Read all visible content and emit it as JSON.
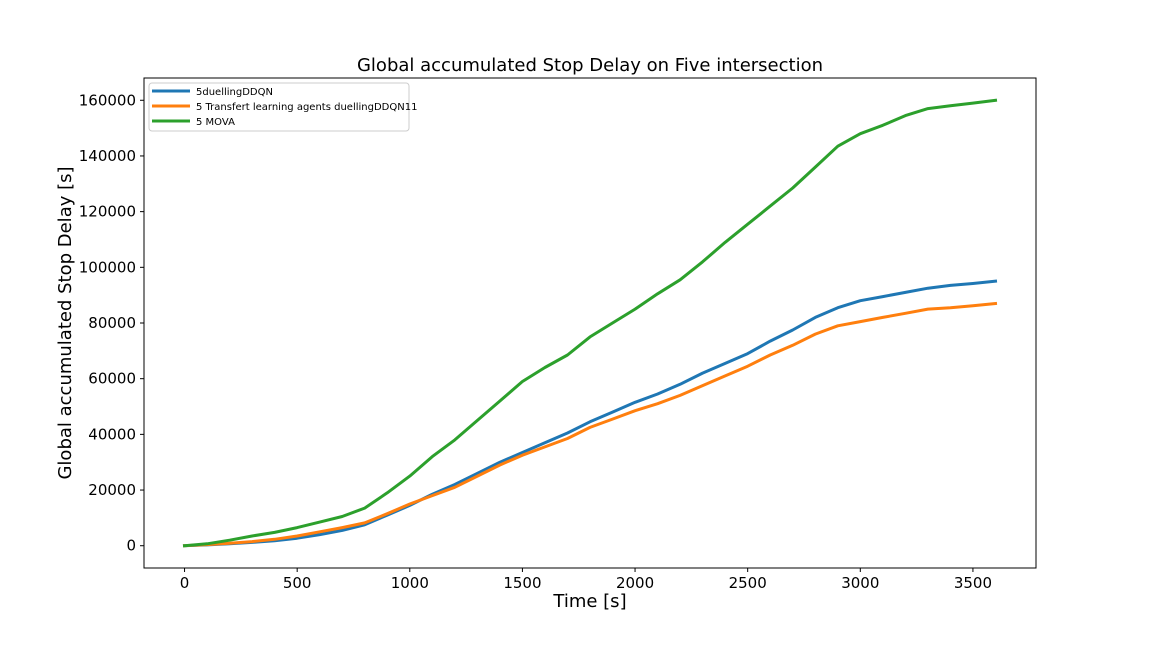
{
  "chart_data": {
    "type": "line",
    "title": "Global accumulated Stop Delay on Five intersection",
    "xlabel": "Time [s]",
    "ylabel": "Global accumulated Stop Delay [s]",
    "xlim": [
      -180,
      3780
    ],
    "ylim": [
      -8000,
      168000
    ],
    "xticks": [
      0,
      500,
      1000,
      1500,
      2000,
      2500,
      3000,
      3500
    ],
    "yticks": [
      0,
      20000,
      40000,
      60000,
      80000,
      100000,
      120000,
      140000,
      160000
    ],
    "grid": false,
    "legend_position": "upper-left",
    "series": [
      {
        "name": "5duellingDDQN",
        "color": "#1f77b4",
        "points": [
          [
            0,
            0
          ],
          [
            100,
            300
          ],
          [
            200,
            700
          ],
          [
            300,
            1200
          ],
          [
            400,
            1800
          ],
          [
            500,
            2700
          ],
          [
            600,
            4000
          ],
          [
            700,
            5500
          ],
          [
            800,
            7500
          ],
          [
            900,
            11000
          ],
          [
            1000,
            14500
          ],
          [
            1100,
            18500
          ],
          [
            1200,
            22000
          ],
          [
            1300,
            26000
          ],
          [
            1400,
            30000
          ],
          [
            1500,
            33500
          ],
          [
            1600,
            37000
          ],
          [
            1700,
            40500
          ],
          [
            1800,
            44500
          ],
          [
            1900,
            48000
          ],
          [
            2000,
            51500
          ],
          [
            2100,
            54500
          ],
          [
            2200,
            58000
          ],
          [
            2300,
            62000
          ],
          [
            2400,
            65500
          ],
          [
            2500,
            69000
          ],
          [
            2600,
            73500
          ],
          [
            2700,
            77500
          ],
          [
            2800,
            82000
          ],
          [
            2900,
            85500
          ],
          [
            3000,
            88000
          ],
          [
            3100,
            89500
          ],
          [
            3200,
            91000
          ],
          [
            3300,
            92500
          ],
          [
            3400,
            93500
          ],
          [
            3500,
            94200
          ],
          [
            3600,
            95000
          ]
        ]
      },
      {
        "name": "5 Transfert learning agents duellingDDQN11",
        "color": "#ff7f0e",
        "points": [
          [
            0,
            0
          ],
          [
            100,
            400
          ],
          [
            200,
            900
          ],
          [
            300,
            1500
          ],
          [
            400,
            2300
          ],
          [
            500,
            3500
          ],
          [
            600,
            5000
          ],
          [
            700,
            6500
          ],
          [
            800,
            8200
          ],
          [
            900,
            11500
          ],
          [
            1000,
            15000
          ],
          [
            1100,
            18000
          ],
          [
            1200,
            21000
          ],
          [
            1300,
            25000
          ],
          [
            1400,
            29000
          ],
          [
            1500,
            32500
          ],
          [
            1600,
            35500
          ],
          [
            1700,
            38500
          ],
          [
            1800,
            42500
          ],
          [
            1900,
            45500
          ],
          [
            2000,
            48500
          ],
          [
            2100,
            51000
          ],
          [
            2200,
            54000
          ],
          [
            2300,
            57500
          ],
          [
            2400,
            61000
          ],
          [
            2500,
            64500
          ],
          [
            2600,
            68500
          ],
          [
            2700,
            72000
          ],
          [
            2800,
            76000
          ],
          [
            2900,
            79000
          ],
          [
            3000,
            80500
          ],
          [
            3100,
            82000
          ],
          [
            3200,
            83500
          ],
          [
            3300,
            85000
          ],
          [
            3400,
            85500
          ],
          [
            3500,
            86200
          ],
          [
            3600,
            87000
          ]
        ]
      },
      {
        "name": "5 MOVA",
        "color": "#2ca02c",
        "points": [
          [
            0,
            0
          ],
          [
            100,
            700
          ],
          [
            200,
            2000
          ],
          [
            300,
            3500
          ],
          [
            400,
            4800
          ],
          [
            500,
            6500
          ],
          [
            600,
            8500
          ],
          [
            700,
            10500
          ],
          [
            800,
            13500
          ],
          [
            900,
            19000
          ],
          [
            1000,
            25000
          ],
          [
            1100,
            32000
          ],
          [
            1200,
            38000
          ],
          [
            1300,
            45000
          ],
          [
            1400,
            52000
          ],
          [
            1500,
            59000
          ],
          [
            1600,
            64000
          ],
          [
            1700,
            68500
          ],
          [
            1800,
            75000
          ],
          [
            1900,
            80000
          ],
          [
            2000,
            85000
          ],
          [
            2100,
            90500
          ],
          [
            2200,
            95500
          ],
          [
            2300,
            102000
          ],
          [
            2400,
            109000
          ],
          [
            2500,
            115500
          ],
          [
            2600,
            122000
          ],
          [
            2700,
            128500
          ],
          [
            2800,
            136000
          ],
          [
            2900,
            143500
          ],
          [
            3000,
            148000
          ],
          [
            3100,
            151000
          ],
          [
            3200,
            154500
          ],
          [
            3300,
            157000
          ],
          [
            3400,
            158000
          ],
          [
            3500,
            159000
          ],
          [
            3600,
            160000
          ]
        ]
      }
    ]
  }
}
